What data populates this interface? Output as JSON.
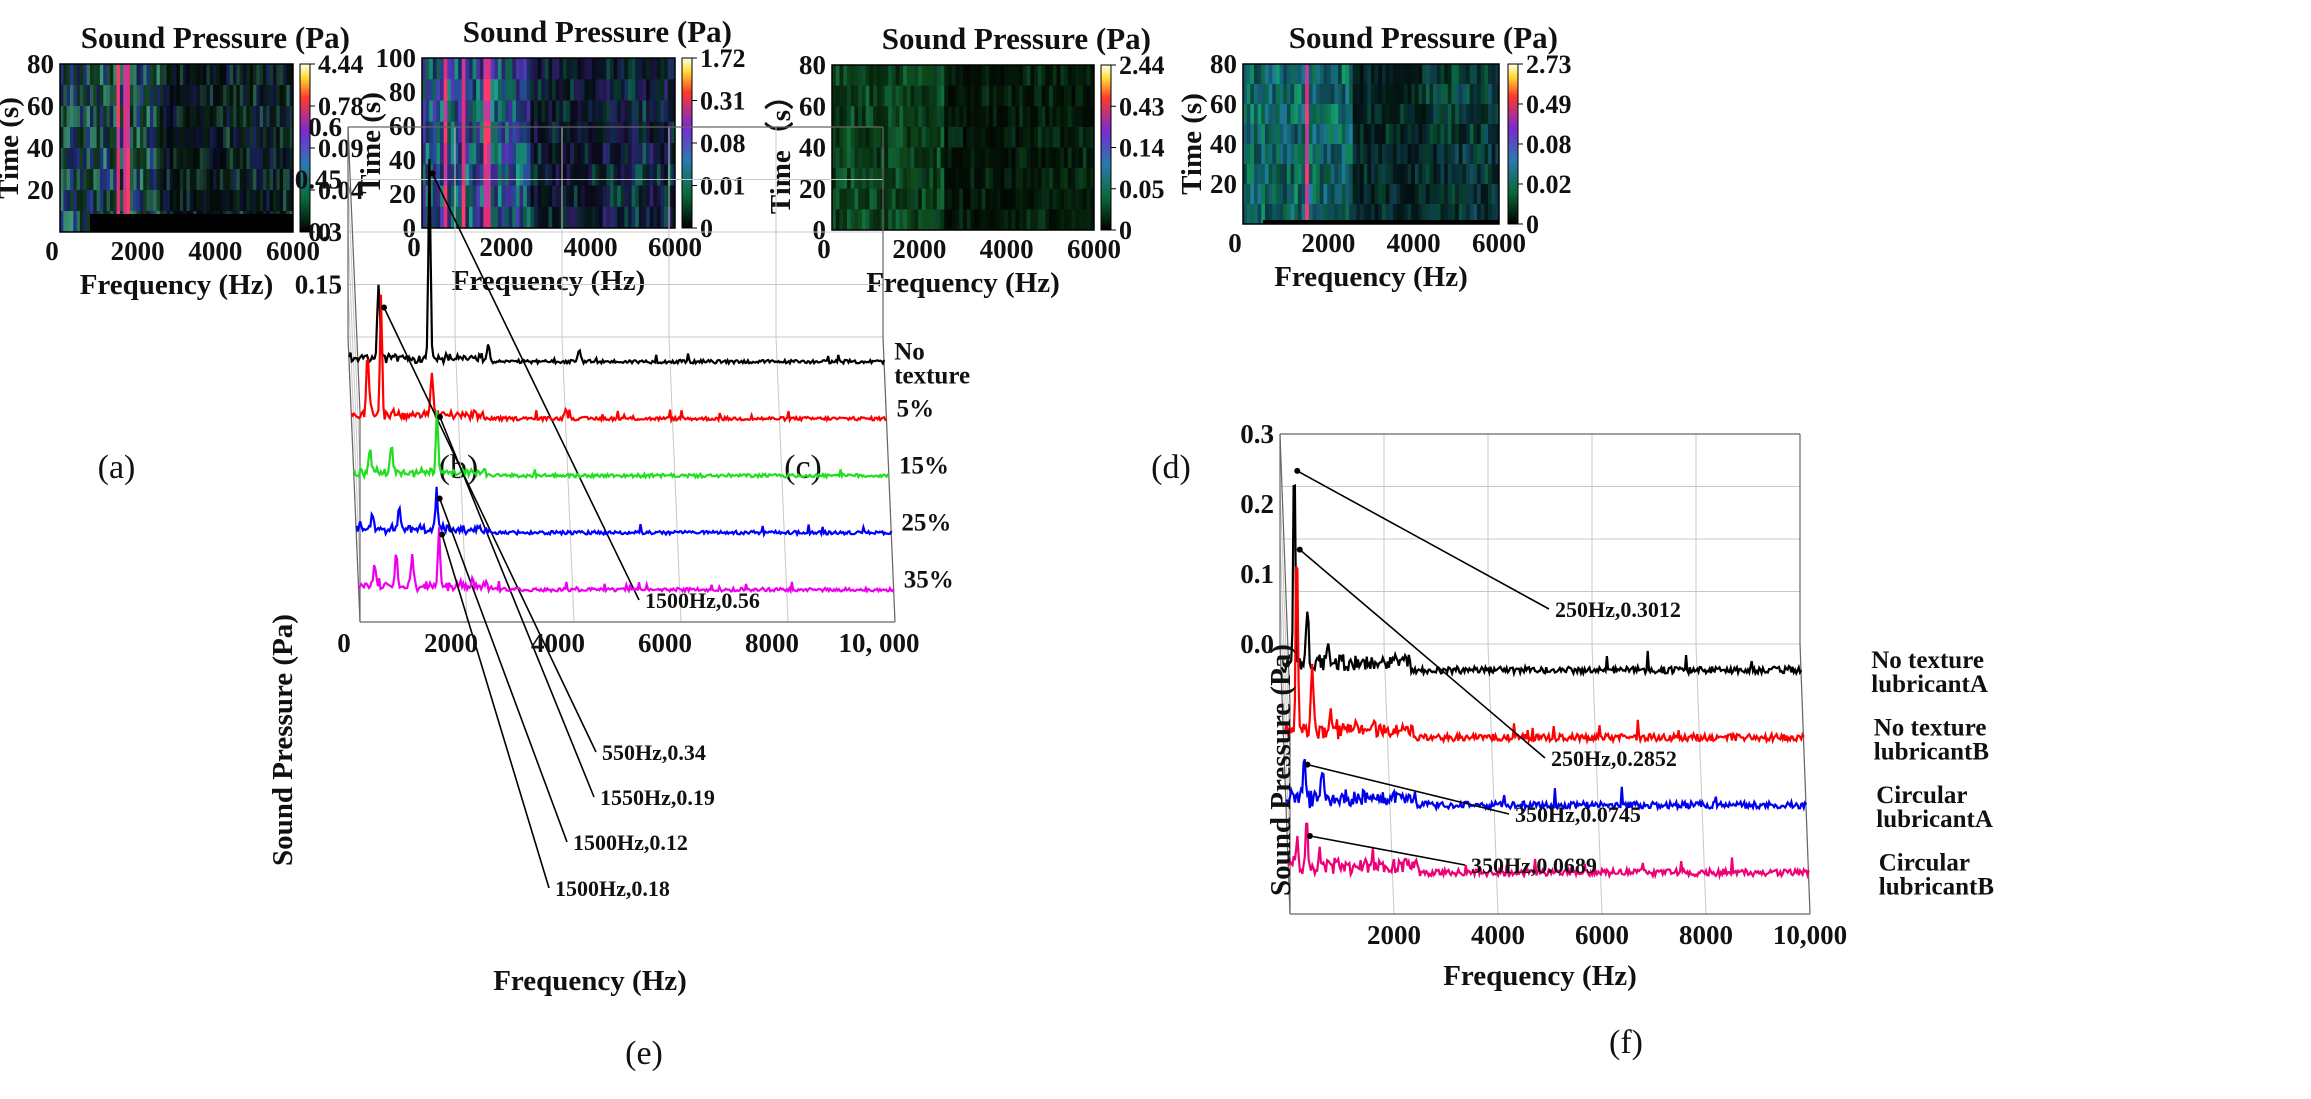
{
  "chart_data": [
    {
      "id": "a",
      "type": "heatmap",
      "panel_label": "(a)",
      "title": "Sound Pressure (Pa)",
      "xlabel": "Frequency (Hz)",
      "ylabel": "Time (s)",
      "xlim": [
        0,
        6000
      ],
      "ylim": [
        0,
        80
      ],
      "xticks": [
        "0",
        "2000",
        "4000",
        "6000"
      ],
      "yticks": [
        "20",
        "40",
        "60",
        "80"
      ],
      "colorbar_ticks": [
        "4.44",
        "0.78",
        "0.09",
        "0.04",
        "0"
      ],
      "bright_bands_hz": [
        1500,
        1700
      ]
    },
    {
      "id": "b",
      "type": "heatmap",
      "panel_label": "(b)",
      "title": "Sound Pressure (Pa)",
      "xlabel": "Frequency (Hz)",
      "ylabel": "Time (s)",
      "xlim": [
        0,
        6000
      ],
      "ylim": [
        0,
        100
      ],
      "xticks": [
        "0",
        "2000",
        "4000",
        "6000"
      ],
      "yticks": [
        "0",
        "20",
        "40",
        "60",
        "80",
        "100"
      ],
      "colorbar_ticks": [
        "1.72",
        "0.31",
        "0.08",
        "0.01",
        "0"
      ],
      "bright_bands_hz": [
        550,
        1000,
        1550
      ]
    },
    {
      "id": "c",
      "type": "heatmap",
      "panel_label": "(c)",
      "title": "Sound Pressure (Pa)",
      "xlabel": "Frequency (Hz)",
      "ylabel": "Time（s）",
      "xlim": [
        0,
        6000
      ],
      "ylim": [
        0,
        80
      ],
      "xticks": [
        "0",
        "2000",
        "4000",
        "6000"
      ],
      "yticks": [
        "0",
        "20",
        "40",
        "60",
        "80"
      ],
      "colorbar_ticks": [
        "2.44",
        "0.43",
        "0.14",
        "0.05",
        "0"
      ],
      "bright_bands_hz": []
    },
    {
      "id": "d",
      "type": "heatmap",
      "panel_label": "(d)",
      "title": "Sound Pressure (Pa)",
      "xlabel": "Frequency (Hz)",
      "ylabel": "Time (s)",
      "xlim": [
        0,
        6000
      ],
      "ylim": [
        0,
        80
      ],
      "xticks": [
        "0",
        "2000",
        "4000",
        "6000"
      ],
      "yticks": [
        "20",
        "40",
        "60",
        "80"
      ],
      "colorbar_ticks": [
        "2.73",
        "0.49",
        "0.08",
        "0.02",
        "0"
      ],
      "bright_bands_hz": [
        1500
      ]
    },
    {
      "id": "e",
      "type": "line",
      "panel_label": "(e)",
      "xlabel": "Frequency (Hz)",
      "ylabel": "Sound Pressure (Pa)",
      "xlim": [
        0,
        10000
      ],
      "ylim": [
        0,
        0.6
      ],
      "xticks": [
        "0",
        "2000",
        "4000",
        "6000",
        "8000",
        "10, 000"
      ],
      "yticks": [
        "0.15",
        "0.3",
        "0.45",
        "0.6"
      ],
      "series": [
        {
          "name": "No texture",
          "color": "#000000",
          "peak_hz": 1500,
          "peak_pa": 0.56,
          "annotation": "1500Hz,0.56",
          "secondary_peaks": [
            [
              550,
              0.22
            ],
            [
              2600,
              0.05
            ],
            [
              4300,
              0.03
            ]
          ]
        },
        {
          "name": "5%",
          "color": "#ff0000",
          "peak_hz": 550,
          "peak_pa": 0.34,
          "annotation": "550Hz,0.34",
          "secondary_peaks": [
            [
              300,
              0.18
            ],
            [
              1500,
              0.12
            ],
            [
              4000,
              0.03
            ]
          ]
        },
        {
          "name": "15%",
          "color": "#22dd22",
          "peak_hz": 1550,
          "peak_pa": 0.19,
          "annotation": "1550Hz,0.19",
          "secondary_peaks": [
            [
              300,
              0.07
            ],
            [
              700,
              0.08
            ]
          ]
        },
        {
          "name": "25%",
          "color": "#0000ff",
          "peak_hz": 1500,
          "peak_pa": 0.12,
          "annotation": "1500Hz,0.12",
          "secondary_peaks": [
            [
              300,
              0.05
            ],
            [
              800,
              0.06
            ]
          ]
        },
        {
          "name": "35%",
          "color": "#ee00ee",
          "peak_hz": 1500,
          "peak_pa": 0.18,
          "annotation": "1500Hz,0.18",
          "secondary_peaks": [
            [
              300,
              0.06
            ],
            [
              700,
              0.09
            ],
            [
              1000,
              0.08
            ]
          ]
        }
      ]
    },
    {
      "id": "f",
      "type": "line",
      "panel_label": "(f)",
      "xlabel": "Frequency (Hz)",
      "ylabel": "Sound Pressure (Pa)",
      "xlim": [
        0,
        10000
      ],
      "ylim": [
        0,
        0.3
      ],
      "xticks": [
        "2000",
        "4000",
        "6000",
        "8000",
        "10,000"
      ],
      "yticks": [
        "0.0",
        "0.1",
        "0.2",
        "0.3"
      ],
      "series": [
        {
          "name": "No texture lubricantA",
          "color": "#000000",
          "peak_hz": 250,
          "peak_pa": 0.3012,
          "annotation": "250Hz,0.3012",
          "secondary_peaks": [
            [
              500,
              0.08
            ],
            [
              900,
              0.04
            ]
          ]
        },
        {
          "name": "No texture lubricantB",
          "color": "#ff0000",
          "peak_hz": 250,
          "peak_pa": 0.2852,
          "annotation": "250Hz,0.2852",
          "secondary_peaks": [
            [
              550,
              0.09
            ],
            [
              900,
              0.03
            ]
          ]
        },
        {
          "name": "Circular lubricantA",
          "color": "#0000ee",
          "peak_hz": 350,
          "peak_pa": 0.0745,
          "annotation": "350Hz,0.0745",
          "secondary_peaks": [
            [
              700,
              0.04
            ]
          ]
        },
        {
          "name": "Circular lubricantB",
          "color": "#ee0077",
          "peak_hz": 350,
          "peak_pa": 0.0689,
          "annotation": "350Hz,0.0689",
          "secondary_peaks": [
            [
              150,
              0.03
            ],
            [
              600,
              0.02
            ]
          ]
        }
      ]
    }
  ]
}
